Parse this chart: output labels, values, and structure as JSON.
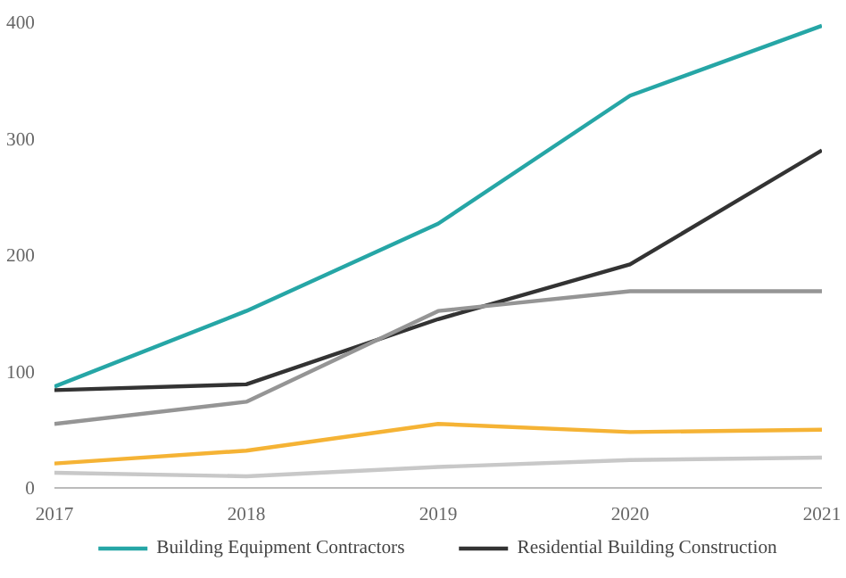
{
  "chart_data": {
    "type": "line",
    "x": [
      2017,
      2018,
      2019,
      2020,
      2021
    ],
    "series": [
      {
        "name": "Building Equipment Contractors",
        "color": "#26a6a6",
        "values": [
          87,
          152,
          227,
          337,
          397
        ]
      },
      {
        "name": "Residential Building Construction",
        "color": "#333333",
        "values": [
          84,
          89,
          145,
          192,
          290
        ]
      },
      {
        "color": "#959595",
        "values": [
          55,
          74,
          152,
          169,
          169
        ]
      },
      {
        "color": "#f5b335",
        "values": [
          21,
          32,
          55,
          48,
          50
        ]
      },
      {
        "color": "#c8c8c8",
        "values": [
          13,
          10,
          18,
          24,
          26
        ]
      }
    ],
    "xlim": [
      2017,
      2021
    ],
    "xticks": [
      2017,
      2018,
      2019,
      2020,
      2021
    ],
    "ylim": [
      0,
      400
    ],
    "yticks": [
      0,
      100,
      200,
      300,
      400
    ],
    "grid": false,
    "legend": "bottom",
    "marker": "none",
    "line_style": "solid"
  }
}
